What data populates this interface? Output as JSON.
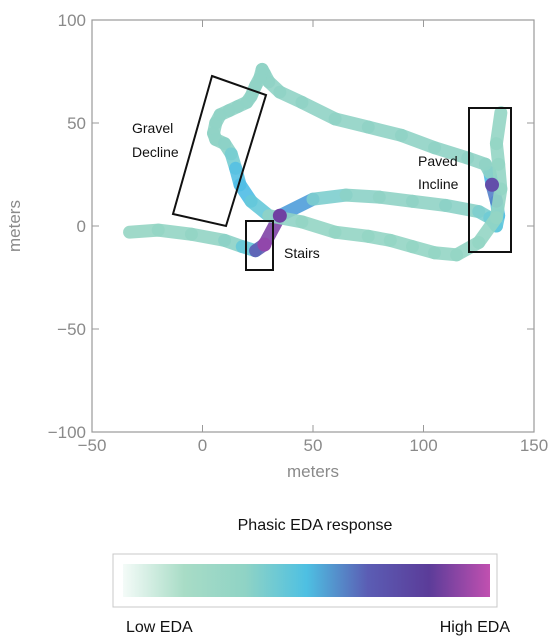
{
  "chart_data": {
    "type": "scatter",
    "subtype": "trajectory-heatline",
    "xlabel": "meters",
    "ylabel": "meters",
    "xlim": [
      -50,
      150
    ],
    "ylim": [
      -100,
      100
    ],
    "xticks": [
      "−50",
      "0",
      "50",
      "100",
      "150"
    ],
    "yticks": [
      "100",
      "50",
      "0",
      "−50",
      "−100"
    ],
    "xtick_values": [
      -50,
      0,
      50,
      100,
      150
    ],
    "ytick_values": [
      100,
      50,
      0,
      -50,
      -100
    ],
    "grid": false,
    "path": {
      "x": [
        -33,
        -20,
        -5,
        10,
        18,
        24,
        28,
        35,
        50,
        65,
        80,
        95,
        110,
        125,
        130,
        133,
        134,
        133,
        131,
        130,
        128,
        120,
        105,
        90,
        75,
        60,
        45,
        35,
        30,
        28,
        27,
        26,
        24,
        22,
        20,
        16,
        12,
        8,
        6,
        5,
        6,
        10,
        13,
        15,
        17,
        22,
        30,
        45,
        60,
        75,
        85,
        95,
        105,
        115,
        125,
        133,
        135,
        134,
        133,
        135
      ],
      "y": [
        -3,
        -2,
        -4,
        -7,
        -10,
        -12,
        -9,
        5,
        13,
        15,
        14,
        12,
        10,
        7,
        4,
        0,
        5,
        12,
        20,
        26,
        30,
        33,
        38,
        44,
        48,
        52,
        60,
        65,
        70,
        74,
        76,
        72,
        68,
        63,
        60,
        58,
        56,
        54,
        50,
        45,
        42,
        40,
        35,
        28,
        20,
        12,
        5,
        2,
        -3,
        -5,
        -7,
        -10,
        -13,
        -14,
        -8,
        4,
        18,
        30,
        40,
        55
      ],
      "eda": [
        0.05,
        0.1,
        0.1,
        0.15,
        0.2,
        0.4,
        0.95,
        0.85,
        0.25,
        0.2,
        0.15,
        0.15,
        0.15,
        0.2,
        0.25,
        0.3,
        0.35,
        0.45,
        0.75,
        0.2,
        0.15,
        0.15,
        0.15,
        0.15,
        0.15,
        0.15,
        0.15,
        0.15,
        0.15,
        0.15,
        0.15,
        0.15,
        0.15,
        0.15,
        0.15,
        0.15,
        0.15,
        0.15,
        0.15,
        0.15,
        0.15,
        0.15,
        0.2,
        0.3,
        0.5,
        0.4,
        0.2,
        0.1,
        0.1,
        0.1,
        0.1,
        0.1,
        0.1,
        0.1,
        0.1,
        0.1,
        0.1,
        0.1,
        0.1,
        0.1
      ]
    },
    "annotations": [
      {
        "text": "Gravel\nDecline",
        "x": 8,
        "y": 30
      },
      {
        "text": "Stairs",
        "x": 27,
        "y": -10
      },
      {
        "text": "Paved\nIncline",
        "x": 131,
        "y": 22
      }
    ],
    "colorbar": {
      "title": "Phasic EDA response",
      "low_label": "Low EDA",
      "high_label": "High EDA",
      "colors": [
        "#f4fbf8",
        "#a8dcc6",
        "#8fd3c5",
        "#4ec0e2",
        "#5b5db4",
        "#5b3c99",
        "#c150b0"
      ]
    }
  },
  "labels": {
    "annotation_gravel_1": "Gravel",
    "annotation_gravel_2": "Decline",
    "annotation_stairs": "Stairs",
    "annotation_paved_1": "Paved",
    "annotation_paved_2": "Incline"
  }
}
